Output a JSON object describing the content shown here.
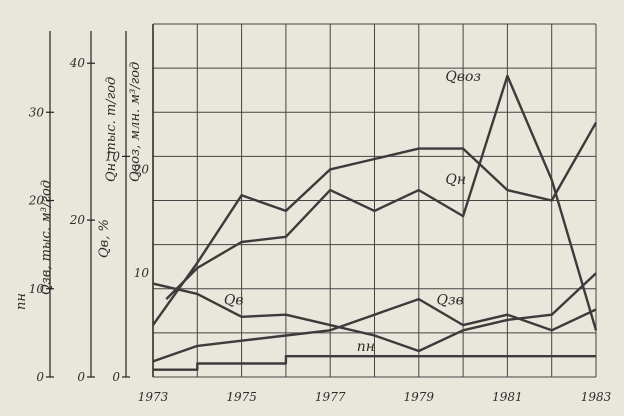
{
  "chart_data": {
    "type": "line",
    "grid": true,
    "x": [
      1973,
      1974,
      1975,
      1976,
      1977,
      1978,
      1979,
      1980,
      1981,
      1982,
      1983
    ],
    "x_ticks": [
      "1973",
      "1975",
      "1977",
      "1979",
      "1981",
      "1983"
    ],
    "xlim": [
      1973,
      1983
    ],
    "axes": [
      {
        "id": "q_main",
        "label_top": "Qн, тыс. т/год",
        "label_bottom": "Qвоз, млн. м³/год",
        "ticks": [
          "10",
          "20"
        ],
        "ylim": [
          0,
          34
        ]
      },
      {
        "id": "qv",
        "label": "Qв, %",
        "ticks": [
          "0",
          "10"
        ],
        "ylim": [
          0,
          16
        ]
      },
      {
        "id": "qzv",
        "label": "Qзв, тыс. м³/год",
        "ticks": [
          "0",
          "20",
          "40"
        ],
        "ylim": [
          0,
          45
        ]
      },
      {
        "id": "nn",
        "label": "nн",
        "ticks": [
          "0",
          "10",
          "20",
          "30"
        ],
        "ylim": [
          0,
          40
        ]
      }
    ],
    "series": [
      {
        "name": "Qвоз",
        "axis": "q_main",
        "x": [
          1973.3,
          1974,
          1975,
          1976,
          1977,
          1978,
          1979,
          1980,
          1981,
          1982,
          1983
        ],
        "values": [
          7.5,
          10.5,
          13,
          13.5,
          18,
          16,
          18,
          15.5,
          29,
          19,
          4.5
        ]
      },
      {
        "name": "Qн",
        "axis": "q_main",
        "x": [
          1973,
          1974,
          1975,
          1976,
          1977,
          1978,
          1979,
          1980,
          1981,
          1982,
          1983
        ],
        "values": [
          5,
          11,
          17.5,
          16,
          20,
          21,
          22,
          22,
          18,
          17,
          24.5
        ]
      },
      {
        "name": "Qв",
        "axis": "q_main",
        "x": [
          1973,
          1974,
          1975,
          1976,
          1977,
          1978,
          1979,
          1980,
          1981,
          1982,
          1983
        ],
        "values": [
          9,
          8,
          5.8,
          6,
          5,
          4,
          2.5,
          4.5,
          5.5,
          6,
          10
        ]
      },
      {
        "name": "Qзв",
        "axis": "q_main",
        "x": [
          1973,
          1974,
          1975,
          1976,
          1977,
          1978,
          1979,
          1980,
          1981,
          1982,
          1983
        ],
        "values": [
          1.5,
          3,
          3.5,
          4,
          4.5,
          6,
          7.5,
          5,
          6,
          4.5,
          6.5
        ]
      },
      {
        "name": "nн",
        "axis": "q_main",
        "x": [
          1973,
          1974,
          1974,
          1976,
          1976,
          1978,
          1980,
          1983
        ],
        "values": [
          0.7,
          0.7,
          1.3,
          1.3,
          2,
          2,
          2,
          2
        ]
      }
    ],
    "series_labels": [
      {
        "series": "Qвоз",
        "text": "Qвоз",
        "x": 1979.6,
        "y": 28.5
      },
      {
        "series": "Qн",
        "text": "Qн",
        "x": 1979.6,
        "y": 18.6
      },
      {
        "series": "Qв",
        "text": "Qв",
        "x": 1974.6,
        "y": 7.0
      },
      {
        "series": "Qзв",
        "text": "Qзв",
        "x": 1979.4,
        "y": 7.0
      },
      {
        "series": "nн",
        "text": "nн",
        "x": 1977.6,
        "y": 2.5
      }
    ]
  }
}
